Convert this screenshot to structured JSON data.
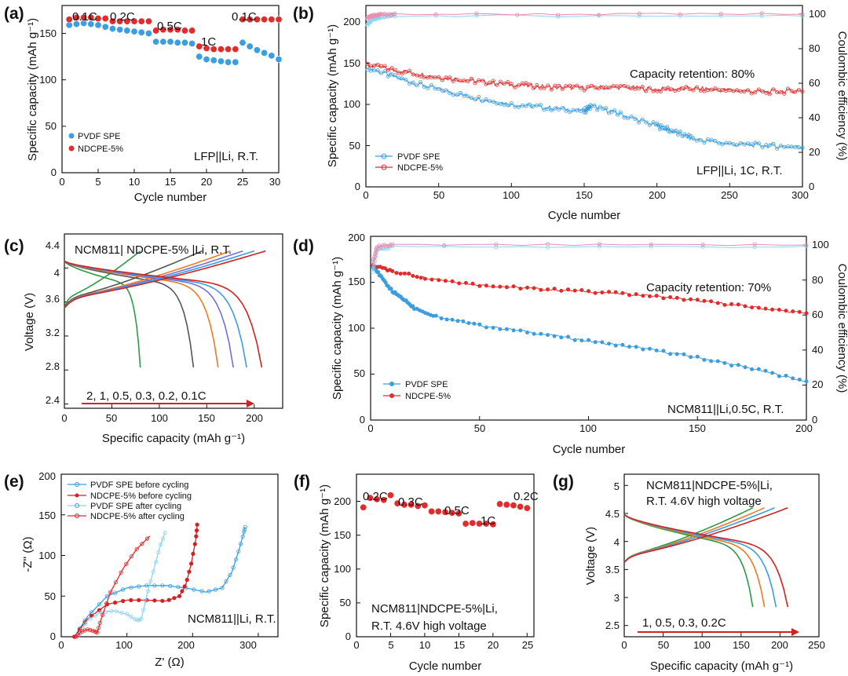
{
  "figure": {
    "panels": [
      {
        "id": "a",
        "label": "(a)",
        "type": "scatter",
        "xlabel": "Cycle number",
        "ylabel": "Specific capacity (mAh g⁻¹)",
        "xlim": [
          0,
          30
        ],
        "ylim": [
          0,
          180
        ],
        "xticks": [
          0,
          5,
          10,
          15,
          20,
          25,
          30
        ],
        "yticks": [
          0,
          50,
          100,
          150
        ],
        "legend_items": [
          "PVDF SPE",
          "NDCPE-5%"
        ],
        "annotations": [
          "0.1C",
          "0.2C",
          "0.5C",
          "1C",
          "0.1C",
          "LFP||Li, R.T."
        ],
        "series": [
          {
            "name": "PVDF SPE",
            "color": "#3a9ee0",
            "x": [
              1,
              2,
              3,
              4,
              5,
              6,
              7,
              8,
              9,
              10,
              11,
              12,
              13,
              14,
              15,
              16,
              17,
              18,
              19,
              20,
              21,
              22,
              23,
              24,
              25,
              26,
              27,
              28,
              29,
              30
            ],
            "y": [
              159,
              160,
              161,
              160,
              159,
              157,
              155,
              154,
              153,
              152,
              151,
              150,
              141,
              141,
              141,
              140,
              140,
              139,
              125,
              122,
              121,
              120,
              119,
              119,
              140,
              136,
              132,
              129,
              126,
              122
            ]
          },
          {
            "name": "NDCPE-5%",
            "color": "#e32b2b",
            "x": [
              1,
              2,
              3,
              4,
              5,
              6,
              7,
              8,
              9,
              10,
              11,
              12,
              13,
              14,
              15,
              16,
              17,
              18,
              19,
              20,
              21,
              22,
              23,
              24,
              25,
              26,
              27,
              28,
              29,
              30
            ],
            "y": [
              165,
              167,
              167,
              167,
              166,
              166,
              163,
              163,
              163,
              163,
              163,
              163,
              153,
              154,
              154,
              154,
              153,
              153,
              136,
              134,
              133,
              133,
              133,
              133,
              165,
              165,
              165,
              165,
              165,
              165
            ]
          }
        ]
      },
      {
        "id": "b",
        "label": "(b)",
        "type": "scatter",
        "xlabel": "Cycle number",
        "ylabel": "Specific capacity (mAh g⁻¹)",
        "y2label": "Coulombic efficiency (%)",
        "xlim": [
          0,
          300
        ],
        "ylim": [
          0,
          220
        ],
        "y2lim": [
          0,
          105
        ],
        "xticks": [
          0,
          50,
          100,
          150,
          200,
          250,
          300
        ],
        "yticks": [
          0,
          50,
          100,
          150,
          200
        ],
        "y2ticks": [
          0,
          20,
          40,
          60,
          80,
          100
        ],
        "legend_items": [
          "PVDF SPE",
          "NDCPE-5%"
        ],
        "annotations": [
          "Capacity retention: 80%",
          "LFP||Li, 1C, R.T."
        ],
        "series": [
          {
            "name": "PVDF SPE capacity",
            "color": "#3a9ee0",
            "x": [
              1,
              25,
              50,
              75,
              100,
              125,
              150,
              155,
              175,
              200,
              210,
              225,
              250,
              275,
              300
            ],
            "y": [
              145,
              130,
              118,
              108,
              100,
              96,
              92,
              98,
              88,
              74,
              68,
              58,
              52,
              50,
              48
            ]
          },
          {
            "name": "NDCPE-5% capacity",
            "color": "#e32b2b",
            "x": [
              1,
              25,
              50,
              75,
              100,
              125,
              150,
              175,
              200,
              225,
              250,
              275,
              300
            ],
            "y": [
              148,
              140,
              133,
              128,
              124,
              121,
              120,
              121,
              118,
              119,
              117,
              115,
              117
            ]
          },
          {
            "name": "PVDF SPE CE",
            "color": "#8fd3f0",
            "axis": "y2",
            "x": [
              1,
              5,
              10,
              20,
              300
            ],
            "y": [
              94,
              97,
              98,
              99,
              99
            ]
          },
          {
            "name": "NDCPE-5% CE",
            "color": "#e88db0",
            "axis": "y2",
            "x": [
              1,
              5,
              10,
              20,
              300
            ],
            "y": [
              98,
              99,
              99.5,
              100,
              100
            ]
          }
        ]
      },
      {
        "id": "c",
        "label": "(c)",
        "type": "line",
        "xlabel": "Specific capacity (mAh g⁻¹)",
        "ylabel": "Voltage (V)",
        "xlim": [
          0,
          230
        ],
        "ylim": [
          2.35,
          4.4
        ],
        "xticks": [
          0,
          50,
          100,
          150,
          200
        ],
        "yticks": [
          2.4,
          2.8,
          3.2,
          3.6,
          4.0,
          4.4
        ],
        "annotations": [
          "NCM811| NDCPE-5% |Li, R.T.",
          "2, 1, 0.5, 0.3, 0.2, 0.1C"
        ],
        "series": [
          {
            "name": "2C",
            "color": "#2a9a45",
            "charge_end": 80,
            "discharge_end": 80
          },
          {
            "name": "1C",
            "color": "#555555",
            "charge_end": 145,
            "discharge_end": 136
          },
          {
            "name": "0.5C",
            "color": "#f07a20",
            "charge_end": 175,
            "discharge_end": 162
          },
          {
            "name": "0.3C",
            "color": "#7070e0",
            "charge_end": 188,
            "discharge_end": 178
          },
          {
            "name": "0.2C",
            "color": "#3a9ee0",
            "charge_end": 200,
            "discharge_end": 192
          },
          {
            "name": "0.1C",
            "color": "#d42020",
            "charge_end": 212,
            "discharge_end": 208
          }
        ]
      },
      {
        "id": "d",
        "label": "(d)",
        "type": "scatter",
        "xlabel": "Cycle number",
        "ylabel": "Specific capacity (mAh g⁻¹)",
        "y2label": "Coulombic efficiency (%)",
        "xlim": [
          0,
          200
        ],
        "ylim": [
          0,
          200
        ],
        "y2lim": [
          0,
          105
        ],
        "xticks": [
          0,
          50,
          100,
          150,
          200
        ],
        "yticks": [
          0,
          50,
          100,
          150,
          200
        ],
        "y2ticks": [
          0,
          20,
          40,
          60,
          80,
          100
        ],
        "legend_items": [
          "PVDF SPE",
          "NDCPE-5%"
        ],
        "annotations": [
          "Capacity retention: 70%",
          "NCM811||Li,0.5C, R.T."
        ],
        "series": [
          {
            "name": "PVDF SPE capacity",
            "color": "#3a9ee0",
            "x": [
              1,
              5,
              10,
              15,
              20,
              30,
              50,
              75,
              100,
              125,
              150,
              175,
              200
            ],
            "y": [
              168,
              155,
              140,
              132,
              122,
              113,
              103,
              95,
              86,
              78,
              68,
              56,
              42
            ]
          },
          {
            "name": "NDCPE-5% capacity",
            "color": "#e32b2b",
            "x": [
              1,
              10,
              25,
              50,
              75,
              100,
              125,
              150,
              175,
              200
            ],
            "y": [
              168,
              162,
              155,
              147,
              143,
              140,
              136,
              130,
              123,
              116
            ]
          },
          {
            "name": "PVDF SPE CE",
            "color": "#8fd3f0",
            "axis": "y2",
            "x": [
              1,
              3,
              10,
              200
            ],
            "y": [
              85,
              97,
              99,
              99
            ]
          },
          {
            "name": "NDCPE-5% CE",
            "color": "#e88db0",
            "axis": "y2",
            "x": [
              1,
              3,
              10,
              200
            ],
            "y": [
              90,
              99,
              100,
              100
            ]
          }
        ]
      },
      {
        "id": "e",
        "label": "(e)",
        "type": "line",
        "xlabel": "Z' (Ω)",
        "ylabel": "-Z'' (Ω)",
        "xlim": [
          0,
          330
        ],
        "ylim": [
          0,
          200
        ],
        "xticks": [
          0,
          100,
          200,
          300
        ],
        "yticks": [
          0,
          50,
          100,
          150,
          200
        ],
        "legend_items": [
          "PVDF SPE before cycling",
          "NDCPE-5% before cycling",
          "PVDF SPE after cycling",
          "NDCPE-5% after cycling"
        ],
        "annotations": [
          "NCM811||Li, R.T."
        ],
        "series": [
          {
            "name": "PVDF SPE before cycling",
            "color": "#3a9ee0",
            "x": [
              20,
              40,
              70,
              100,
              130,
              160,
              190,
              220,
              245,
              260,
              270,
              278,
              280
            ],
            "y": [
              0,
              25,
              50,
              60,
              63,
              63,
              60,
              55,
              60,
              80,
              105,
              128,
              135
            ]
          },
          {
            "name": "NDCPE-5% before cycling",
            "color": "#d42020",
            "x": [
              20,
              40,
              70,
              100,
              130,
              160,
              180,
              190,
              198,
              205,
              207
            ],
            "y": [
              0,
              22,
              40,
              45,
              45,
              44,
              50,
              65,
              90,
              120,
              138
            ]
          },
          {
            "name": "PVDF SPE after cycling",
            "color": "#8fd3f0",
            "x": [
              25,
              40,
              60,
              80,
              100,
              115,
              122,
              130,
              140,
              150,
              158
            ],
            "y": [
              0,
              20,
              30,
              32,
              28,
              20,
              22,
              50,
              80,
              110,
              128
            ]
          },
          {
            "name": "NDCPE-5% after cycling",
            "color": "#e32b2b",
            "x": [
              22,
              30,
              40,
              50,
              55,
              60,
              75,
              95,
              115,
              135
            ],
            "y": [
              0,
              6,
              9,
              7,
              5,
              20,
              55,
              85,
              108,
              124
            ]
          }
        ]
      },
      {
        "id": "f",
        "label": "(f)",
        "type": "scatter",
        "xlabel": "Cycle number",
        "ylabel": "Specific capacity (mAh g⁻¹)",
        "xlim": [
          0,
          26
        ],
        "ylim": [
          0,
          240
        ],
        "xticks": [
          0,
          5,
          10,
          15,
          20,
          25
        ],
        "yticks": [
          0,
          50,
          100,
          150,
          200
        ],
        "annotations": [
          "0.2C",
          "0.3C",
          "0.5C",
          "1C",
          "0.2C",
          "NCM811|NDCPE-5%|Li,",
          "R.T. 4.6V  high voltage"
        ],
        "series": [
          {
            "name": "NDCPE-5%",
            "color": "#e32b2b",
            "x": [
              1,
              2,
              3,
              4,
              5,
              6,
              7,
              8,
              9,
              10,
              11,
              12,
              13,
              14,
              15,
              16,
              17,
              18,
              19,
              20,
              21,
              22,
              23,
              24,
              25
            ],
            "y": [
              191,
              205,
              203,
              202,
              209,
              197,
              195,
              195,
              193,
              194,
              185,
              185,
              184,
              183,
              182,
              167,
              168,
              167,
              167,
              166,
              196,
              195,
              194,
              192,
              190
            ]
          }
        ]
      },
      {
        "id": "g",
        "label": "(g)",
        "type": "line",
        "xlabel": "Specific capacity (mAh g⁻¹)",
        "ylabel": "Voltage (V)",
        "xlim": [
          0,
          250
        ],
        "ylim": [
          2.3,
          5.2
        ],
        "xticks": [
          0,
          50,
          100,
          150,
          200,
          250
        ],
        "yticks": [
          2.5,
          3.0,
          3.5,
          4.0,
          4.5,
          5.0
        ],
        "annotations": [
          "NCM811|NDCPE-5%|Li,",
          "R.T. 4.6V high voltage",
          "1, 0.5, 0.3, 0.2C"
        ],
        "series": [
          {
            "name": "1C",
            "color": "#2a9a45",
            "charge_end": 165,
            "discharge_end": 165
          },
          {
            "name": "0.5C",
            "color": "#f07a20",
            "charge_end": 180,
            "discharge_end": 180
          },
          {
            "name": "0.3C",
            "color": "#3a9ee0",
            "charge_end": 193,
            "discharge_end": 195
          },
          {
            "name": "0.2C",
            "color": "#d42020",
            "charge_end": 210,
            "discharge_end": 210
          }
        ]
      }
    ]
  }
}
